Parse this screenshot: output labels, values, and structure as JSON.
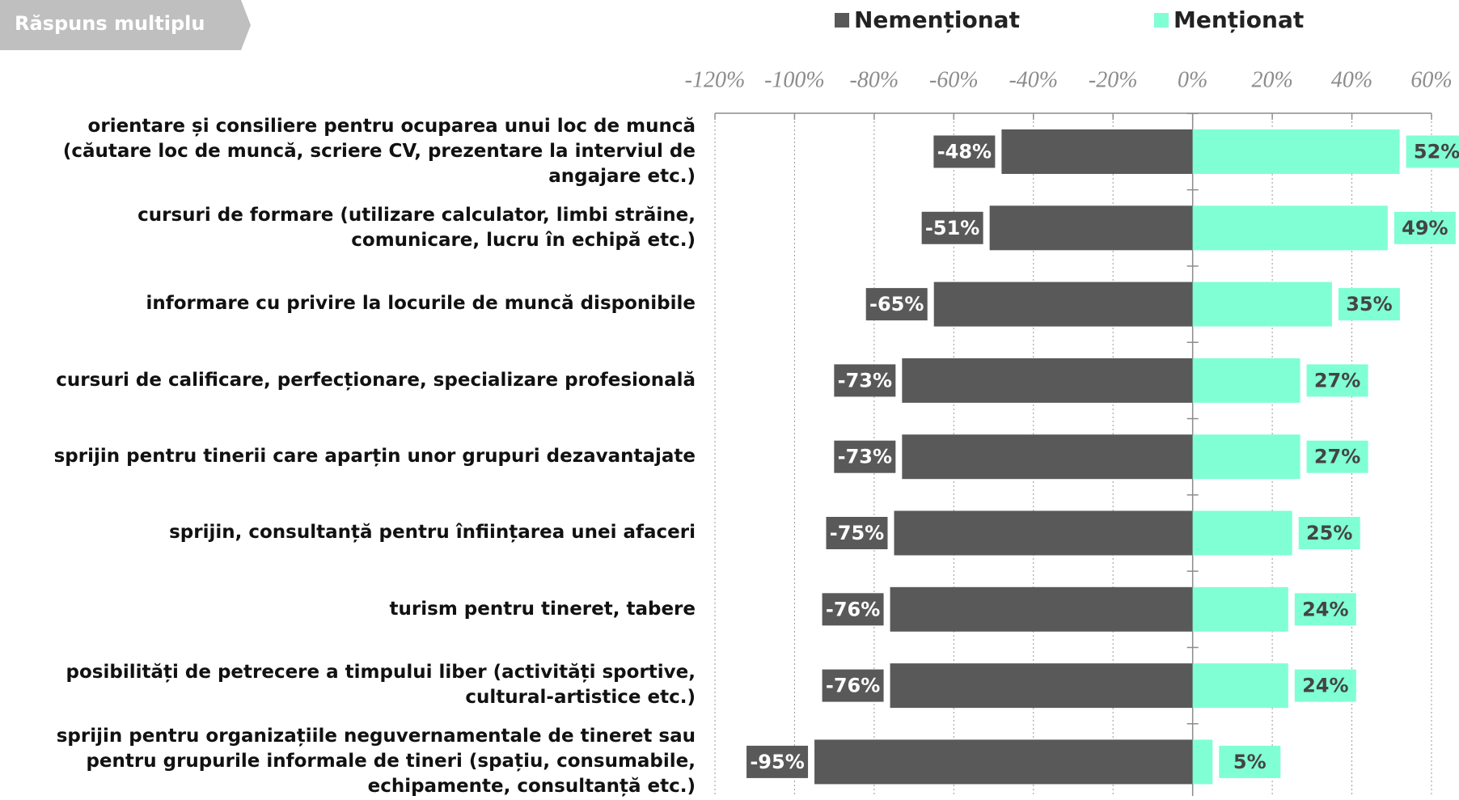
{
  "badge": "Răspuns multiplu",
  "chart_data": {
    "type": "diverging-bar",
    "categories": [
      "orientare și consiliere pentru ocuparea unui loc de muncă (căutare loc de muncă, scriere CV, prezentare la interviul de angajare etc.)",
      "cursuri de formare (utilizare calculator, limbi străine, comunicare, lucru în echipă etc.)",
      "informare cu privire la locurile de muncă disponibile",
      "cursuri de calificare, perfecționare, specializare profesională",
      "sprijin pentru tinerii care aparțin unor grupuri dezavantajate",
      "sprijin, consultanță pentru înființarea unei afaceri",
      "turism pentru tineret, tabere",
      "posibilități de petrecere a timpului liber (activități sportive, cultural-artistice etc.)",
      "sprijin pentru organizațiile neguvernamentale de tineret sau pentru grupurile informale de tineri (spațiu, consumabile, echipamente, consultanță etc.)"
    ],
    "series": [
      {
        "name": "Nemenționat",
        "color": "#595959",
        "label_color": "#ffffff",
        "values": [
          -48,
          -51,
          -65,
          -73,
          -73,
          -75,
          -76,
          -76,
          -95
        ],
        "value_labels": [
          "-48%",
          "-51%",
          "-65%",
          "-73%",
          "-73%",
          "-75%",
          "-76%",
          "-76%",
          "-95%"
        ]
      },
      {
        "name": "Menționat",
        "color": "#80ffd4",
        "label_color": "#444444",
        "values": [
          52,
          49,
          35,
          27,
          27,
          25,
          24,
          24,
          5
        ],
        "value_labels": [
          "52%",
          "49%",
          "35%",
          "27%",
          "27%",
          "25%",
          "24%",
          "24%",
          "5%"
        ]
      }
    ],
    "xlim": [
      -120,
      60
    ],
    "xticks": [
      {
        "value": -120,
        "label": "-120%"
      },
      {
        "value": -100,
        "label": "-100%"
      },
      {
        "value": -80,
        "label": "-80%"
      },
      {
        "value": -60,
        "label": "-60%"
      },
      {
        "value": -40,
        "label": "-40%"
      },
      {
        "value": -20,
        "label": "-20%"
      },
      {
        "value": 0,
        "label": "0%"
      },
      {
        "value": 20,
        "label": "20%"
      },
      {
        "value": 40,
        "label": "40%"
      },
      {
        "value": 60,
        "label": "60%"
      }
    ],
    "grid": true,
    "legend": "top"
  }
}
